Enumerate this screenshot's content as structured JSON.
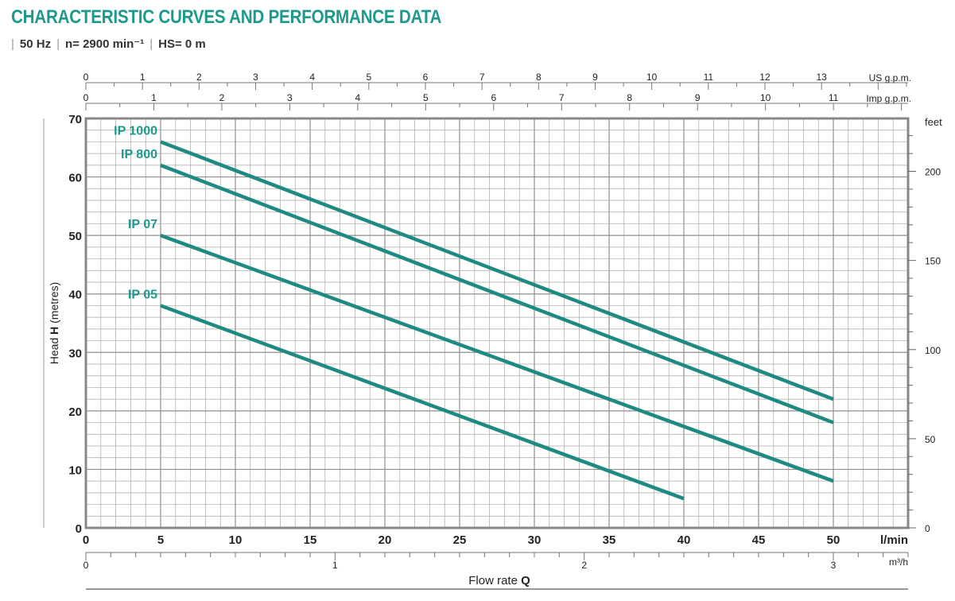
{
  "header": {
    "title": "CHARACTERISTIC CURVES AND PERFORMANCE DATA",
    "conditions": [
      "50 Hz",
      "n= 2900 min⁻¹",
      "HS= 0 m"
    ]
  },
  "colors": {
    "accent": "#1d9a8c",
    "curve": "#1f8a81",
    "grid": "#a7a7a7",
    "frame": "#888888"
  },
  "chart_data": {
    "type": "line",
    "title": "CHARACTERISTIC CURVES AND PERFORMANCE DATA",
    "x_primary": {
      "label": "Flow rate",
      "label_bold": "Q",
      "unit": "l/min",
      "range": [
        0,
        55
      ],
      "ticks": [
        0,
        5,
        10,
        15,
        20,
        25,
        30,
        35,
        40,
        45,
        50
      ]
    },
    "x_m3h": {
      "unit": "m³/h",
      "ticks": [
        0,
        1,
        2,
        3
      ]
    },
    "x_us_gpm": {
      "unit": "US g.p.m.",
      "ticks": [
        0,
        1,
        2,
        3,
        4,
        5,
        6,
        7,
        8,
        9,
        10,
        11,
        12,
        13
      ]
    },
    "x_imp_gpm": {
      "unit": "Imp g.p.m.",
      "ticks": [
        0,
        1,
        2,
        3,
        4,
        5,
        6,
        7,
        8,
        9,
        10,
        11
      ]
    },
    "y_primary": {
      "label": "Head",
      "label_bold": "H",
      "label_suffix": "(metres)",
      "range": [
        0,
        70
      ],
      "ticks": [
        0,
        10,
        20,
        30,
        40,
        50,
        60,
        70
      ]
    },
    "y_feet": {
      "unit": "feet",
      "ticks": [
        0,
        50,
        100,
        150,
        200
      ]
    },
    "grid": true,
    "series": [
      {
        "name": "IP 1000",
        "x": [
          5,
          50
        ],
        "y": [
          66,
          22
        ]
      },
      {
        "name": "IP 800",
        "x": [
          5,
          50
        ],
        "y": [
          62,
          18
        ]
      },
      {
        "name": "IP 07",
        "x": [
          5,
          50
        ],
        "y": [
          50,
          8
        ]
      },
      {
        "name": "IP 05",
        "x": [
          5,
          40
        ],
        "y": [
          38,
          5
        ]
      }
    ]
  }
}
